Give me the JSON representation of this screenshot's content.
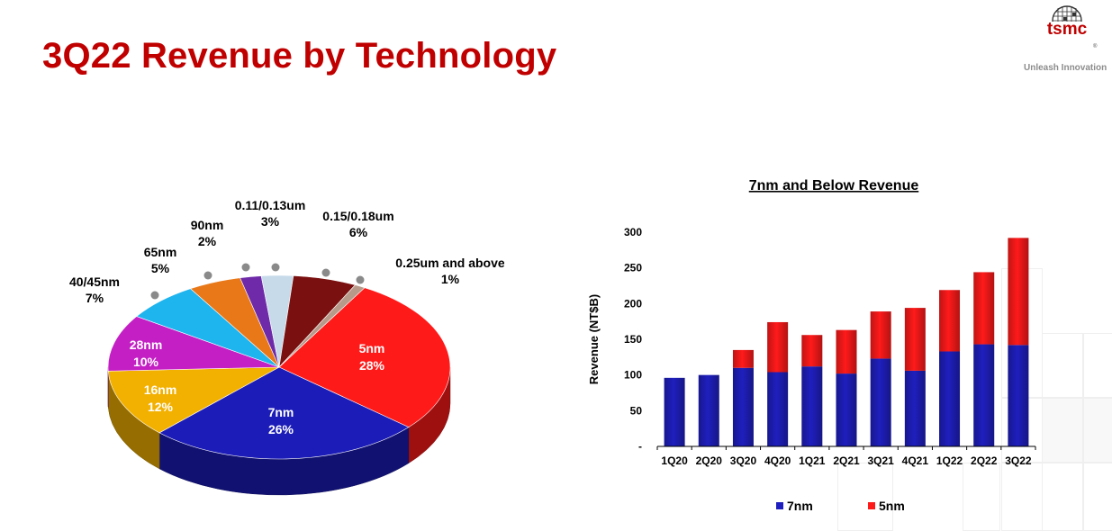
{
  "title": "3Q22 Revenue by Technology",
  "logo": {
    "text": "tsmc",
    "tagline": "Unleash Innovation"
  },
  "colors": {
    "title": "#c00000",
    "n7": "#1f1fbf",
    "n5": "#ff1a1a"
  },
  "chart_data": [
    {
      "type": "pie",
      "slices": [
        {
          "name": "5nm",
          "value": 28,
          "label": "28%",
          "color": "#ff1a1a"
        },
        {
          "name": "7nm",
          "value": 26,
          "label": "26%",
          "color": "#1c1cb8"
        },
        {
          "name": "16nm",
          "value": 12,
          "label": "12%",
          "color": "#f2b000"
        },
        {
          "name": "28nm",
          "value": 10,
          "label": "10%",
          "color": "#c41fc4"
        },
        {
          "name": "40/45nm",
          "value": 7,
          "label": "7%",
          "color": "#1eb4ee"
        },
        {
          "name": "65nm",
          "value": 5,
          "label": "5%",
          "color": "#e87818"
        },
        {
          "name": "90nm",
          "value": 2,
          "label": "2%",
          "color": "#6e2aa8"
        },
        {
          "name": "0.11/0.13um",
          "value": 3,
          "label": "3%",
          "color": "#c6daea"
        },
        {
          "name": "0.15/0.18um",
          "value": 6,
          "label": "6%",
          "color": "#7a1010"
        },
        {
          "name": "0.25um and above",
          "value": 1,
          "label": "1%",
          "color": "#b89a8a"
        }
      ]
    },
    {
      "type": "bar",
      "stacked": true,
      "title": "7nm and Below Revenue",
      "ylabel": "Revenue (NT$B)",
      "categories": [
        "1Q20",
        "2Q20",
        "3Q20",
        "4Q20",
        "1Q21",
        "2Q21",
        "3Q21",
        "4Q21",
        "1Q22",
        "2Q22",
        "3Q22"
      ],
      "series": [
        {
          "name": "7nm",
          "values": [
            96,
            100,
            110,
            104,
            112,
            102,
            123,
            106,
            133,
            143,
            142
          ],
          "color": "#1f1fbf"
        },
        {
          "name": "5nm",
          "values": [
            0,
            0,
            25,
            70,
            44,
            61,
            66,
            88,
            86,
            101,
            150
          ],
          "color": "#ff1a1a"
        }
      ],
      "yticks": [
        0,
        50,
        100,
        150,
        200,
        250,
        300
      ],
      "ytick_labels": [
        "-",
        "50",
        "100",
        "150",
        "200",
        "250",
        "300"
      ],
      "ylim": [
        0,
        300
      ],
      "legend": "bottom"
    }
  ]
}
